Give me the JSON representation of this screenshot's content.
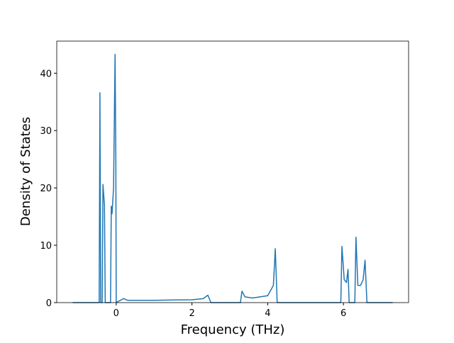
{
  "chart_data": {
    "type": "line",
    "xlabel": "Frequency (THz)",
    "ylabel": "Density of States",
    "x": [
      -1.15,
      -0.45,
      -0.43,
      -0.41,
      -0.37,
      -0.35,
      -0.31,
      -0.29,
      -0.15,
      -0.13,
      -0.11,
      -0.07,
      -0.03,
      -0.01,
      0.0,
      0.05,
      0.2,
      0.3,
      1.0,
      2.0,
      2.3,
      2.42,
      2.5,
      3.28,
      3.32,
      3.4,
      3.6,
      4.0,
      4.15,
      4.2,
      4.25,
      5.93,
      5.96,
      6.02,
      6.08,
      6.12,
      6.15,
      6.3,
      6.33,
      6.38,
      6.45,
      6.52,
      6.57,
      6.62,
      7.3
    ],
    "values": [
      0,
      0,
      36.6,
      0,
      0,
      20.6,
      17,
      0,
      0,
      16.8,
      15.5,
      20,
      43.3,
      25,
      0,
      0.2,
      0.7,
      0.4,
      0.4,
      0.5,
      0.7,
      1.3,
      0,
      0,
      2.0,
      1.0,
      0.8,
      1.2,
      3,
      9.4,
      0,
      0,
      9.8,
      4,
      3.5,
      5.8,
      0,
      0,
      11.4,
      3,
      3,
      4,
      7.4,
      0,
      0
    ],
    "color": "#1f77b4",
    "xlim": [
      -1.57,
      7.72
    ],
    "ylim": [
      0,
      45.6
    ],
    "xticks": [
      0,
      2,
      4,
      6
    ],
    "yticks": [
      0,
      10,
      20,
      30,
      40
    ]
  }
}
